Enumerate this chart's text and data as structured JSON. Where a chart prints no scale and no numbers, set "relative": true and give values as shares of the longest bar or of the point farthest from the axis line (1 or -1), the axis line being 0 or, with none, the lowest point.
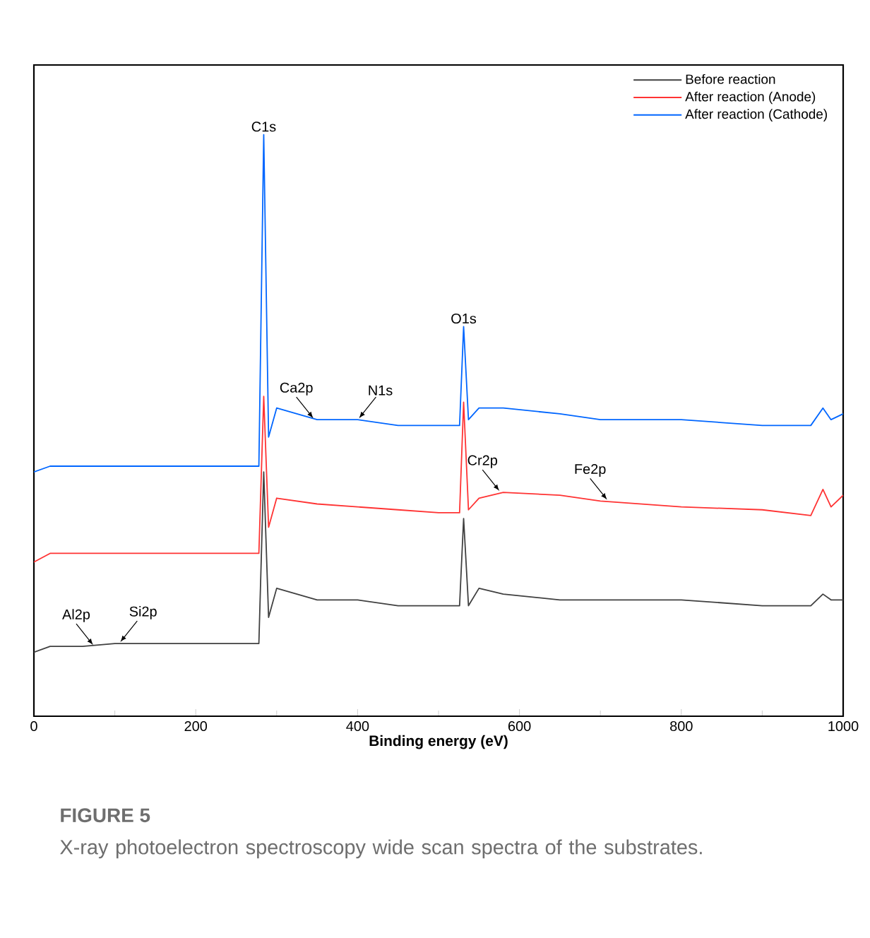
{
  "chart_data": {
    "type": "line",
    "title": "FIGURE 5",
    "subtitle": "X-ray photoelectron spectroscopy wide scan spectra of the substrates.",
    "xlabel": "Binding energy (eV)",
    "relative": true,
    "xlim": [
      0,
      1000
    ],
    "xticks": [
      0,
      200,
      400,
      600,
      800,
      1000
    ],
    "legend": "top right",
    "grid": false,
    "marker": "none",
    "line_style": "solid",
    "x": [
      0,
      20,
      60,
      100,
      150,
      200,
      250,
      278,
      284,
      290,
      300,
      350,
      400,
      450,
      500,
      526,
      531,
      537,
      550,
      580,
      650,
      700,
      800,
      900,
      960,
      975,
      985,
      1000
    ],
    "series": [
      {
        "name": "Before reaction",
        "color": "#404040",
        "values": [
          0.11,
          0.12,
          0.12,
          0.125,
          0.125,
          0.125,
          0.125,
          0.125,
          0.42,
          0.17,
          0.22,
          0.2,
          0.2,
          0.19,
          0.19,
          0.19,
          0.34,
          0.19,
          0.22,
          0.21,
          0.2,
          0.2,
          0.2,
          0.19,
          0.19,
          0.21,
          0.2,
          0.2
        ]
      },
      {
        "name": "After reaction (Anode)",
        "color": "#ff3333",
        "values": [
          0.265,
          0.28,
          0.28,
          0.28,
          0.28,
          0.28,
          0.28,
          0.28,
          0.55,
          0.325,
          0.375,
          0.365,
          0.36,
          0.355,
          0.35,
          0.35,
          0.54,
          0.355,
          0.375,
          0.385,
          0.38,
          0.37,
          0.36,
          0.355,
          0.345,
          0.39,
          0.36,
          0.38
        ]
      },
      {
        "name": "After reaction (Cathode)",
        "color": "#0066ff",
        "values": [
          0.42,
          0.43,
          0.43,
          0.43,
          0.43,
          0.43,
          0.43,
          0.43,
          1.0,
          0.48,
          0.53,
          0.51,
          0.51,
          0.5,
          0.5,
          0.5,
          0.67,
          0.51,
          0.53,
          0.53,
          0.52,
          0.51,
          0.51,
          0.5,
          0.5,
          0.53,
          0.51,
          0.52
        ]
      }
    ],
    "annotations": [
      {
        "text": "C1s",
        "x": 284,
        "y": 1.0
      },
      {
        "text": "O1s",
        "x": 531,
        "y": 0.67
      },
      {
        "text": "Ca2p",
        "x": 347,
        "y": 0.51
      },
      {
        "text": "N1s",
        "x": 400,
        "y": 0.51
      },
      {
        "text": "Cr2p",
        "x": 577,
        "y": 0.385
      },
      {
        "text": "Fe2p",
        "x": 710,
        "y": 0.37
      },
      {
        "text": "Al2p",
        "x": 75,
        "y": 0.12
      },
      {
        "text": "Si2p",
        "x": 105,
        "y": 0.125
      }
    ]
  }
}
